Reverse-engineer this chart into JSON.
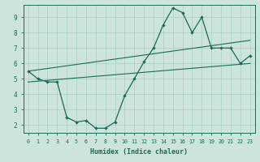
{
  "xlabel": "Humidex (Indice chaleur)",
  "ylabel": "",
  "bg_color": "#cce4dc",
  "line_color": "#1a6b5a",
  "grid_color": "#aacfc4",
  "xlim": [
    -0.5,
    23.5
  ],
  "ylim": [
    1.5,
    9.8
  ],
  "xticks": [
    0,
    1,
    2,
    3,
    4,
    5,
    6,
    7,
    8,
    9,
    10,
    11,
    12,
    13,
    14,
    15,
    16,
    17,
    18,
    19,
    20,
    21,
    22,
    23
  ],
  "yticks": [
    2,
    3,
    4,
    5,
    6,
    7,
    8,
    9
  ],
  "series1_x": [
    0,
    1,
    2,
    3,
    4,
    5,
    6,
    7,
    8,
    9,
    10,
    11,
    12,
    13,
    14,
    15,
    16,
    17,
    18,
    19,
    20,
    21,
    22,
    23
  ],
  "series1_y": [
    5.5,
    5.0,
    4.8,
    4.8,
    2.5,
    2.2,
    2.3,
    1.8,
    1.8,
    2.2,
    3.9,
    5.0,
    6.1,
    7.0,
    8.5,
    9.6,
    9.3,
    8.0,
    9.0,
    7.0,
    7.0,
    7.0,
    6.0,
    6.5
  ],
  "series2_x": [
    0,
    23
  ],
  "series2_y": [
    5.5,
    7.5
  ],
  "series3_x": [
    0,
    23
  ],
  "series3_y": [
    4.8,
    6.0
  ]
}
